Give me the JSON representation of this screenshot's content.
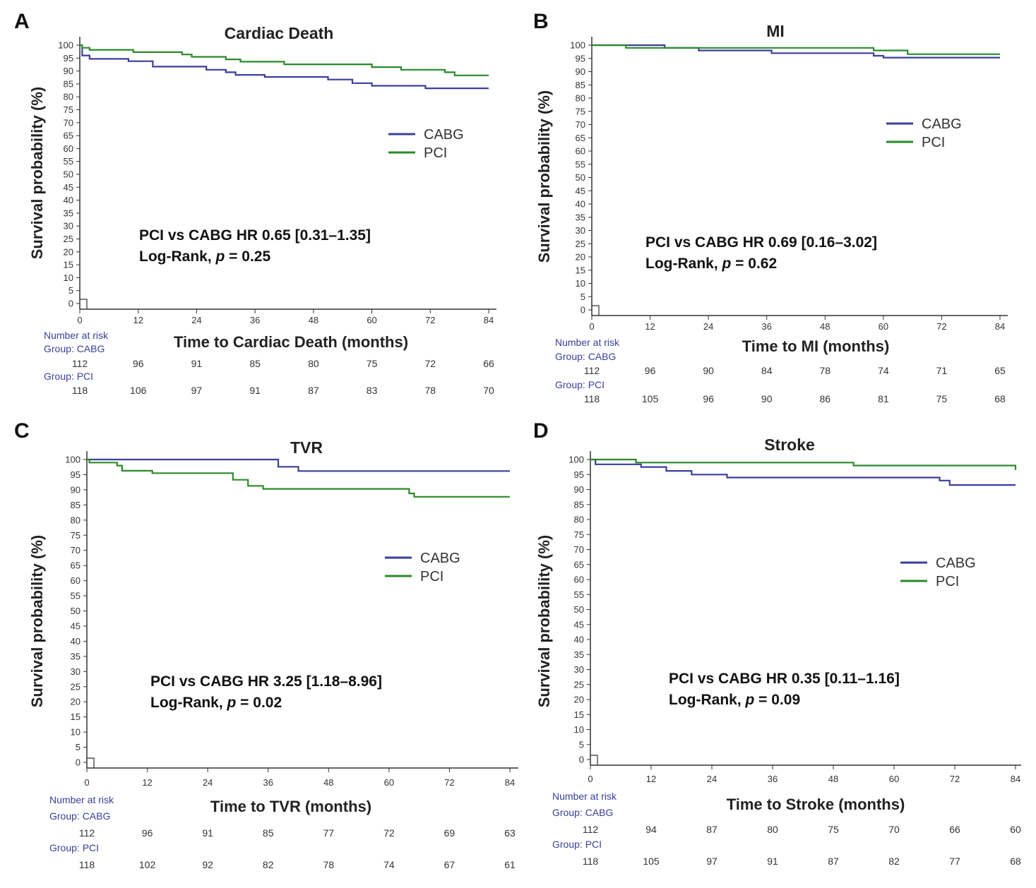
{
  "figure": {
    "colors": {
      "CABG": "#3a3f9a",
      "PCI": "#2a8a2a",
      "axis": "#333333",
      "risk_label": "#3a3f9a",
      "text": "#222222"
    }
  },
  "chart_data": [
    {
      "type": "line",
      "panel_label": "A",
      "title": "Cardiac Death",
      "xlabel": "Time to Cardiac Death (months)",
      "ylabel": "Survival probability (%)",
      "xlim": [
        0,
        84
      ],
      "ylim": [
        0,
        100
      ],
      "xticks": [
        0,
        12,
        24,
        36,
        48,
        60,
        72,
        84
      ],
      "yticks": [
        0,
        5,
        10,
        15,
        20,
        25,
        30,
        35,
        40,
        45,
        50,
        55,
        60,
        65,
        70,
        75,
        80,
        85,
        90,
        95,
        100
      ],
      "legend": [
        "CABG",
        "PCI"
      ],
      "legend_position": "right-middle",
      "series": [
        {
          "name": "CABG",
          "points": [
            [
              0,
              100
            ],
            [
              0.5,
              96
            ],
            [
              2,
              94.7
            ],
            [
              10,
              93.8
            ],
            [
              15,
              91.7
            ],
            [
              26,
              90.5
            ],
            [
              30,
              89.5
            ],
            [
              32,
              88.5
            ],
            [
              38,
              87.7
            ],
            [
              51,
              86.7
            ],
            [
              56,
              85.3
            ],
            [
              60,
              84.3
            ],
            [
              71,
              83.3
            ],
            [
              84,
              83.3
            ]
          ]
        },
        {
          "name": "PCI",
          "points": [
            [
              0,
              100
            ],
            [
              0.5,
              99
            ],
            [
              2,
              98.2
            ],
            [
              11,
              97.3
            ],
            [
              21,
              96.4
            ],
            [
              23,
              95.5
            ],
            [
              30,
              94.5
            ],
            [
              33,
              93.6
            ],
            [
              42,
              92.6
            ],
            [
              60,
              91.5
            ],
            [
              66,
              90.5
            ],
            [
              75,
              89.5
            ],
            [
              77,
              88.3
            ],
            [
              84,
              88.3
            ]
          ]
        }
      ],
      "annotation": {
        "line1": "PCI vs CABG HR 0.65 [0.31–1.35]",
        "line2_prefix": "Log-Rank, ",
        "line2_p": "p",
        "line2_suffix": " = 0.25"
      },
      "risk": {
        "header": "Number at risk",
        "group1_label": "Group: CABG",
        "group1": [
          "112",
          "96",
          "91",
          "85",
          "80",
          "75",
          "72",
          "66"
        ],
        "group2_label": "Group: PCI",
        "group2": [
          "118",
          "106",
          "97",
          "91",
          "87",
          "83",
          "78",
          "70"
        ]
      }
    },
    {
      "type": "line",
      "panel_label": "B",
      "title": "MI",
      "xlabel": "Time to MI (months)",
      "ylabel": "Survival probability (%)",
      "xlim": [
        0,
        84
      ],
      "ylim": [
        0,
        100
      ],
      "xticks": [
        0,
        12,
        24,
        36,
        48,
        60,
        72,
        84
      ],
      "yticks": [
        0,
        5,
        10,
        15,
        20,
        25,
        30,
        35,
        40,
        45,
        50,
        55,
        60,
        65,
        70,
        75,
        80,
        85,
        90,
        95,
        100
      ],
      "legend": [
        "CABG",
        "PCI"
      ],
      "legend_position": "right-upper",
      "series": [
        {
          "name": "CABG",
          "points": [
            [
              0,
              100
            ],
            [
              15,
              99
            ],
            [
              22,
              98
            ],
            [
              37,
              97
            ],
            [
              58,
              96
            ],
            [
              60,
              95.3
            ],
            [
              84,
              95.3
            ]
          ]
        },
        {
          "name": "PCI",
          "points": [
            [
              0,
              100
            ],
            [
              7,
              99
            ],
            [
              58,
              98
            ],
            [
              65,
              96.6
            ],
            [
              84,
              96.6
            ]
          ]
        }
      ],
      "annotation": {
        "line1": "PCI vs CABG HR 0.69 [0.16–3.02]",
        "line2_prefix": "Log-Rank, ",
        "line2_p": "p",
        "line2_suffix": " = 0.62"
      },
      "risk": {
        "header": "Number at risk",
        "group1_label": "Group: CABG",
        "group1": [
          "112",
          "96",
          "90",
          "84",
          "78",
          "74",
          "71",
          "65"
        ],
        "group2_label": "Group: PCI",
        "group2": [
          "118",
          "105",
          "96",
          "90",
          "86",
          "81",
          "75",
          "68"
        ]
      }
    },
    {
      "type": "line",
      "panel_label": "C",
      "title": "TVR",
      "xlabel": "Time to TVR (months)",
      "ylabel": "Survival probability (%)",
      "xlim": [
        0,
        84
      ],
      "ylim": [
        0,
        100
      ],
      "xticks": [
        0,
        12,
        24,
        36,
        48,
        60,
        72,
        84
      ],
      "yticks": [
        0,
        5,
        10,
        15,
        20,
        25,
        30,
        35,
        40,
        45,
        50,
        55,
        60,
        65,
        70,
        75,
        80,
        85,
        90,
        95,
        100
      ],
      "legend": [
        "CABG",
        "PCI"
      ],
      "legend_position": "right-middle",
      "series": [
        {
          "name": "CABG",
          "points": [
            [
              0,
              100
            ],
            [
              37,
              100
            ],
            [
              38,
              97.6
            ],
            [
              42,
              96.2
            ],
            [
              84,
              96.2
            ]
          ]
        },
        {
          "name": "PCI",
          "points": [
            [
              0,
              100
            ],
            [
              0.5,
              99
            ],
            [
              6,
              98
            ],
            [
              7,
              96.3
            ],
            [
              13,
              95.5
            ],
            [
              29,
              93.3
            ],
            [
              32,
              91.3
            ],
            [
              35,
              90.3
            ],
            [
              64,
              88.8
            ],
            [
              65,
              87.7
            ],
            [
              84,
              87.7
            ]
          ]
        }
      ],
      "annotation": {
        "line1": "PCI vs CABG HR 3.25 [1.18–8.96]",
        "line2_prefix": "Log-Rank, ",
        "line2_p": "p",
        "line2_suffix": " = 0.02"
      },
      "risk": {
        "header": "Number at risk",
        "group1_label": "Group: CABG",
        "group1": [
          "112",
          "96",
          "91",
          "85",
          "77",
          "72",
          "69",
          "63"
        ],
        "group2_label": "Group: PCI",
        "group2": [
          "118",
          "102",
          "92",
          "82",
          "78",
          "74",
          "67",
          "61"
        ]
      }
    },
    {
      "type": "line",
      "panel_label": "D",
      "title": "Stroke",
      "xlabel": "Time to Stroke (months)",
      "ylabel": "Survival probability (%)",
      "xlim": [
        0,
        84
      ],
      "ylim": [
        0,
        100
      ],
      "xticks": [
        0,
        12,
        24,
        36,
        48,
        60,
        72,
        84
      ],
      "yticks": [
        0,
        5,
        10,
        15,
        20,
        25,
        30,
        35,
        40,
        45,
        50,
        55,
        60,
        65,
        70,
        75,
        80,
        85,
        90,
        95,
        100
      ],
      "legend": [
        "CABG",
        "PCI"
      ],
      "legend_position": "right-middle",
      "series": [
        {
          "name": "CABG",
          "points": [
            [
              0,
              100
            ],
            [
              1,
              98.4
            ],
            [
              10,
              97.5
            ],
            [
              15,
              96.2
            ],
            [
              20,
              95
            ],
            [
              27,
              94
            ],
            [
              69,
              93
            ],
            [
              71,
              91.5
            ],
            [
              84,
              91.5
            ]
          ]
        },
        {
          "name": "PCI",
          "points": [
            [
              0,
              100
            ],
            [
              9,
              99
            ],
            [
              52,
              98
            ],
            [
              84,
              98
            ],
            [
              84,
              96.5
            ]
          ]
        }
      ],
      "annotation": {
        "line1": "PCI vs CABG HR 0.35 [0.11–1.16]",
        "line2_prefix": "Log-Rank, ",
        "line2_p": "p",
        "line2_suffix": " = 0.09"
      },
      "risk": {
        "header": "Number at risk",
        "group1_label": "Group: CABG",
        "group1": [
          "112",
          "94",
          "87",
          "80",
          "75",
          "70",
          "66",
          "60"
        ],
        "group2_label": "Group: PCI",
        "group2": [
          "118",
          "105",
          "97",
          "91",
          "87",
          "82",
          "77",
          "68"
        ]
      }
    }
  ]
}
